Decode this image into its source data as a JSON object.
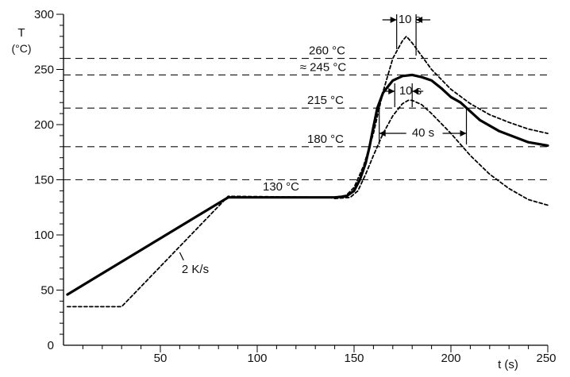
{
  "chart_data": {
    "type": "line",
    "xlabel": "t (s)",
    "ylabel_line1": "T",
    "ylabel_line2": "(°C)",
    "xlim": [
      0,
      250
    ],
    "ylim": [
      0,
      300
    ],
    "x_ticks": [
      50,
      100,
      150,
      200,
      250
    ],
    "y_ticks": [
      0,
      50,
      100,
      150,
      200,
      250,
      300
    ],
    "reference_lines": [
      {
        "value": 260,
        "label": "260 °C"
      },
      {
        "value": 245,
        "label": "≈ 245 °C"
      },
      {
        "value": 215,
        "label": "215 °C"
      },
      {
        "value": 180,
        "label": "180 °C"
      },
      {
        "value": 150,
        "label": ""
      }
    ],
    "annotations": {
      "plateau": "130 °C",
      "slope": "2 K/s",
      "window_peak": "10 s",
      "window_inner": "10 s",
      "window_liquidus": "40 s"
    },
    "series": [
      {
        "style": "solid",
        "x": [
          2,
          85,
          140,
          146,
          150,
          153,
          156,
          158,
          160,
          162,
          165,
          170,
          175,
          180,
          185,
          190,
          195,
          200,
          205,
          210,
          215,
          225,
          240,
          250
        ],
        "y": [
          46,
          134,
          134,
          135,
          140,
          150,
          165,
          180,
          198,
          215,
          229,
          240,
          244,
          245,
          243,
          240,
          233,
          225,
          220,
          212,
          204,
          194,
          184,
          181
        ]
      },
      {
        "style": "dashed",
        "x": [
          2,
          30,
          85,
          140,
          146,
          150,
          155,
          160,
          165,
          170,
          175,
          177,
          180,
          185,
          190,
          200,
          210,
          220,
          230,
          240,
          250
        ],
        "y": [
          35,
          35,
          135,
          134,
          136,
          143,
          163,
          192,
          230,
          260,
          276,
          280,
          274,
          262,
          250,
          232,
          219,
          209,
          202,
          196,
          192
        ]
      },
      {
        "style": "dashed",
        "x": [
          140,
          148,
          152,
          156,
          160,
          165,
          170,
          175,
          178,
          180,
          185,
          190,
          200,
          210,
          220,
          230,
          240,
          250
        ],
        "y": [
          133,
          134,
          140,
          155,
          172,
          192,
          208,
          219,
          222,
          222,
          218,
          210,
          192,
          172,
          155,
          142,
          132,
          127
        ]
      }
    ]
  }
}
